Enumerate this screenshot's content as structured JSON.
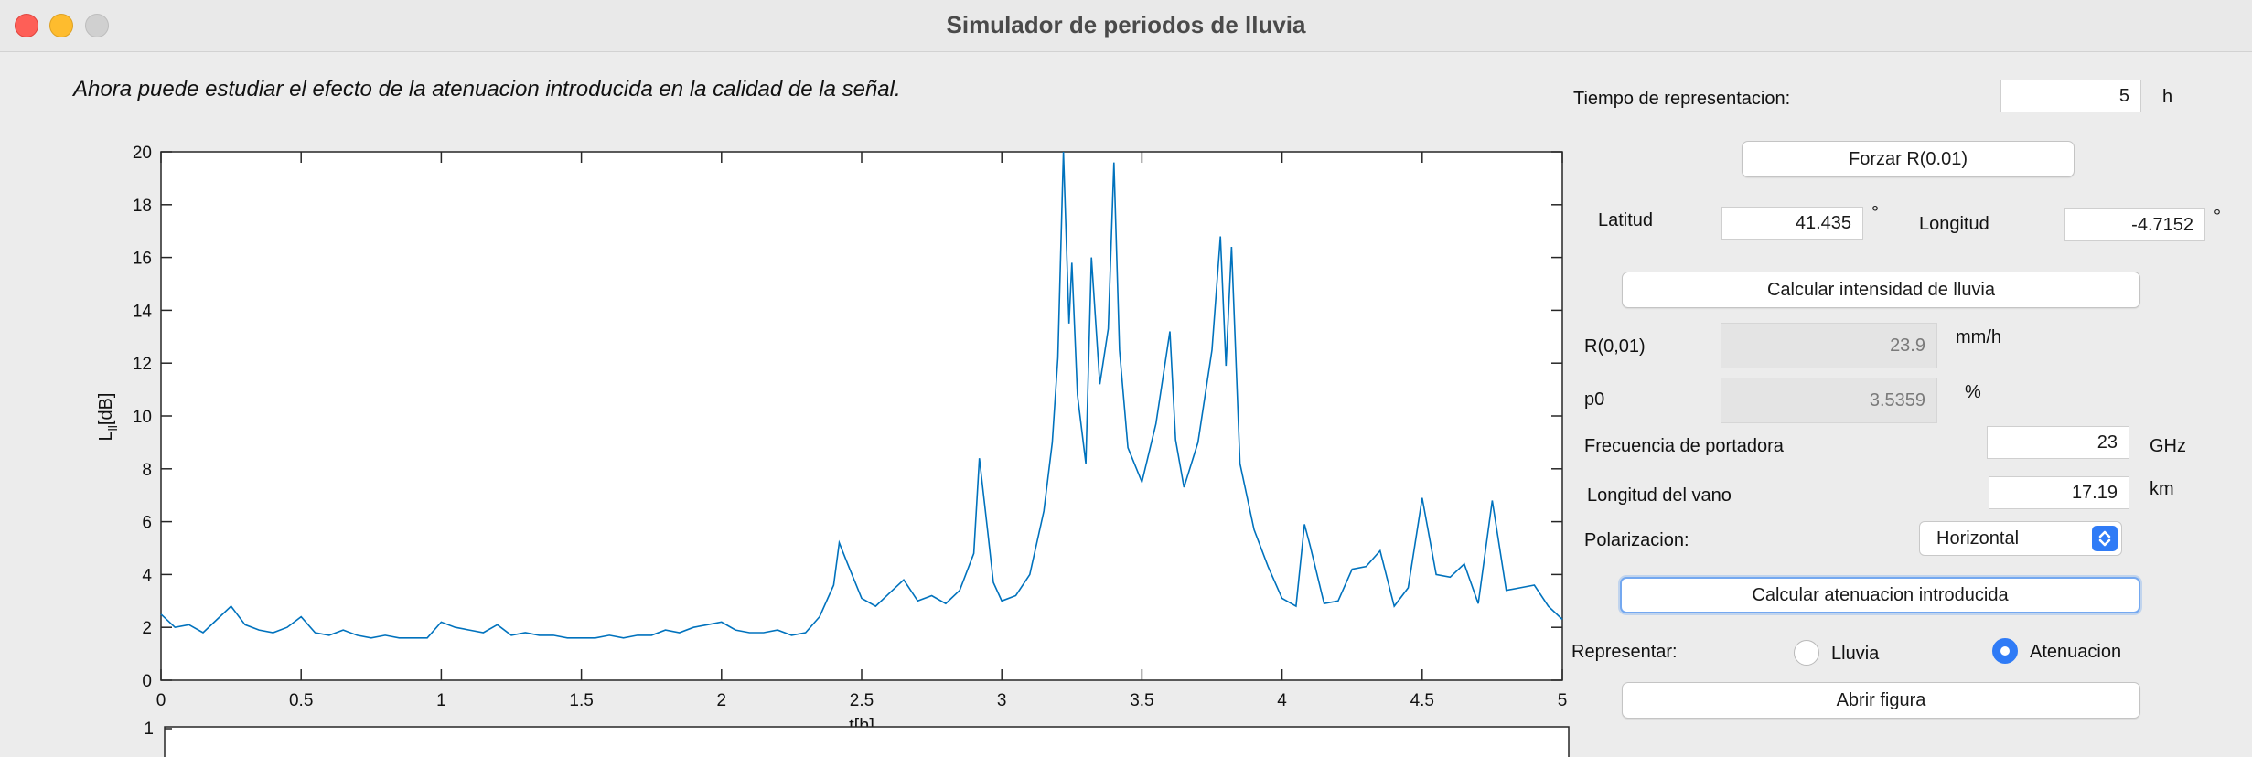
{
  "window": {
    "title": "Simulador de periodos de lluvia"
  },
  "instruction": "Ahora puede estudiar el efecto de la atenuacion introducida en la calidad de la señal.",
  "panel": {
    "tiempo_label": "Tiempo de representacion:",
    "tiempo_value": "5",
    "tiempo_unit": "h",
    "forzar_button": "Forzar R(0.01)",
    "latitud_label": "Latitud",
    "latitud_value": "41.435",
    "latitud_unit": "°",
    "longitud_label": "Longitud",
    "longitud_value": "-4.7152",
    "longitud_unit": "°",
    "calcular_intensidad_button": "Calcular intensidad de lluvia",
    "r001_label": "R(0,01)",
    "r001_value": "23.9",
    "r001_unit": "mm/h",
    "p0_label": "p0",
    "p0_value": "3.5359",
    "p0_unit": "%",
    "frecuencia_label": "Frecuencia de portadora",
    "frecuencia_value": "23",
    "frecuencia_unit": "GHz",
    "longitud_vano_label": "Longitud del vano",
    "longitud_vano_value": "17.19",
    "longitud_vano_unit": "km",
    "polarizacion_label": "Polarizacion:",
    "polarizacion_value": "Horizontal",
    "calcular_atenuacion_button": "Calcular atenuacion introducida",
    "representar_label": "Representar:",
    "radio_lluvia": "Lluvia",
    "radio_atenuacion": "Atenuacion",
    "selected_radio": "Atenuacion",
    "abrir_figura_button": "Abrir figura"
  },
  "colors": {
    "series": "#0072bd",
    "select_accent": "#2f7bf6"
  },
  "second_axis": {
    "top_tick": "1"
  },
  "chart_data": {
    "type": "line",
    "xlabel": "t[h]",
    "ylabel": "L",
    "ylabel_sub": "ll",
    "ylabel_unit": "[dB]",
    "xlim": [
      0,
      5
    ],
    "ylim": [
      0,
      20
    ],
    "xticks": [
      0,
      0.5,
      1,
      1.5,
      2,
      2.5,
      3,
      3.5,
      4,
      4.5,
      5
    ],
    "yticks": [
      0,
      2,
      4,
      6,
      8,
      10,
      12,
      14,
      16,
      18,
      20
    ],
    "grid": false,
    "series": [
      {
        "x": [
          0,
          0.05,
          0.1,
          0.15,
          0.2,
          0.25,
          0.3,
          0.35,
          0.4,
          0.45,
          0.5,
          0.55,
          0.6,
          0.65,
          0.7,
          0.75,
          0.8,
          0.85,
          0.9,
          0.95,
          1,
          1.05,
          1.1,
          1.15,
          1.2,
          1.25,
          1.3,
          1.35,
          1.4,
          1.45,
          1.5,
          1.55,
          1.6,
          1.65,
          1.7,
          1.75,
          1.8,
          1.85,
          1.9,
          1.95,
          2,
          2.05,
          2.1,
          2.15,
          2.2,
          2.25,
          2.3,
          2.35,
          2.4,
          2.42,
          2.45,
          2.5,
          2.55,
          2.6,
          2.65,
          2.7,
          2.75,
          2.8,
          2.85,
          2.9,
          2.92,
          2.95,
          2.97,
          3,
          3.05,
          3.1,
          3.15,
          3.18,
          3.2,
          3.22,
          3.24,
          3.25,
          3.27,
          3.3,
          3.32,
          3.35,
          3.38,
          3.4,
          3.42,
          3.45,
          3.5,
          3.55,
          3.6,
          3.62,
          3.65,
          3.7,
          3.75,
          3.78,
          3.8,
          3.82,
          3.85,
          3.9,
          3.95,
          4,
          4.05,
          4.08,
          4.1,
          4.15,
          4.2,
          4.25,
          4.3,
          4.35,
          4.4,
          4.45,
          4.5,
          4.55,
          4.6,
          4.65,
          4.7,
          4.75,
          4.8,
          4.85,
          4.9,
          4.95,
          5
        ],
        "y": [
          2.5,
          2.0,
          2.1,
          1.8,
          2.3,
          2.8,
          2.1,
          1.9,
          1.8,
          2.0,
          2.4,
          1.8,
          1.7,
          1.9,
          1.7,
          1.6,
          1.7,
          1.6,
          1.6,
          1.6,
          2.2,
          2.0,
          1.9,
          1.8,
          2.1,
          1.7,
          1.8,
          1.7,
          1.7,
          1.6,
          1.6,
          1.6,
          1.7,
          1.6,
          1.7,
          1.7,
          1.9,
          1.8,
          2.0,
          2.1,
          2.2,
          1.9,
          1.8,
          1.8,
          1.9,
          1.7,
          1.8,
          2.4,
          3.6,
          5.2,
          4.4,
          3.1,
          2.8,
          3.3,
          3.8,
          3.0,
          3.2,
          2.9,
          3.4,
          4.8,
          8.4,
          5.6,
          3.7,
          3.0,
          3.2,
          4.0,
          6.4,
          9.0,
          12.2,
          20.0,
          13.5,
          15.8,
          10.8,
          8.2,
          16.0,
          11.2,
          13.3,
          19.6,
          12.5,
          8.8,
          7.5,
          9.7,
          13.2,
          9.1,
          7.3,
          9.0,
          12.5,
          16.8,
          11.9,
          16.4,
          8.2,
          5.7,
          4.3,
          3.1,
          2.8,
          5.9,
          5.1,
          2.9,
          3.0,
          4.2,
          4.3,
          4.9,
          2.8,
          3.5,
          6.9,
          4.0,
          3.9,
          4.4,
          2.9,
          6.8,
          3.4,
          3.5,
          3.6,
          2.8,
          2.3
        ]
      }
    ]
  }
}
